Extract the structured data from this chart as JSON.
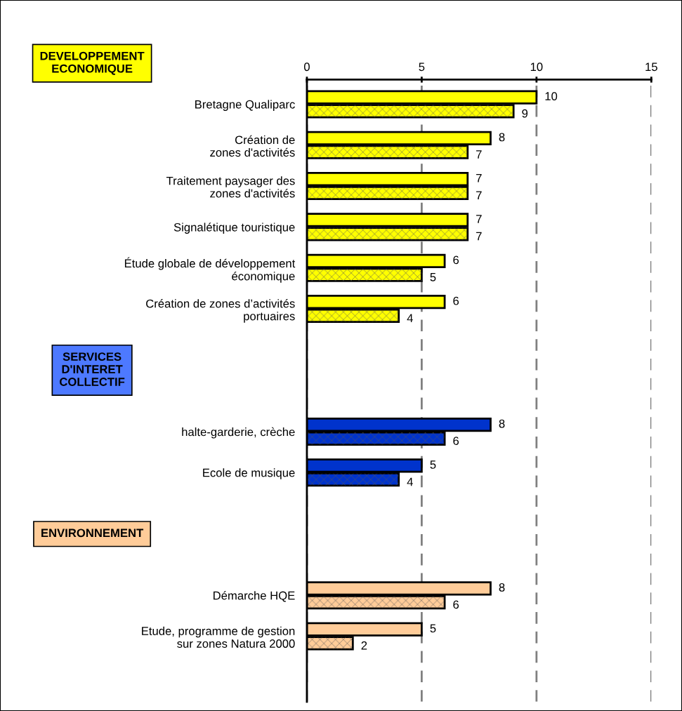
{
  "chart_data": {
    "type": "bar",
    "orientation": "horizontal",
    "categories": [
      "Bretagne Qualiparc",
      "Création de\nzones d'activités",
      "Traitement paysager des\nzones d'activités",
      "Signalétique touristique",
      "Étude globale de développement\néconomique",
      "Création de zones d’activités\nportuaires",
      null,
      null,
      "halte-garderie, crèche",
      "Ecole de musique",
      null,
      null,
      "Démarche HQE",
      "Etude, programme de gestion\nsur zones Natura 2000"
    ],
    "series": [
      {
        "colors": [
          "#ffff00",
          "#ffff00",
          "#ffff00",
          "#ffff00",
          "#ffff00",
          "#ffff00",
          null,
          null,
          "#0033cc",
          "#0033cc",
          null,
          null,
          "#ffcc99",
          "#ffcc99"
        ],
        "values": [
          10,
          8,
          7,
          7,
          6,
          6,
          null,
          null,
          8,
          5,
          null,
          null,
          8,
          5
        ]
      },
      {
        "colors": [
          "#ffff00",
          "#ffff00",
          "#ffff00",
          "#ffff00",
          "#ffff00",
          "#ffff00",
          null,
          null,
          "#0033cc",
          "#0033cc",
          null,
          null,
          "#ffcc99",
          "#ffcc99"
        ],
        "values": [
          9,
          7,
          7,
          7,
          5,
          4,
          null,
          null,
          6,
          4,
          null,
          null,
          6,
          2
        ]
      }
    ],
    "xlim": [
      0,
      15
    ],
    "xticks": [
      0,
      5,
      10,
      15
    ],
    "grid": "x",
    "data_labels": true,
    "annotations": [
      "DEVELOPPEMENT\nECONOMIQUE",
      "SERVICES\nD'INTERET\nCOLLECTIF",
      "ENVIRONNEMENT"
    ]
  }
}
